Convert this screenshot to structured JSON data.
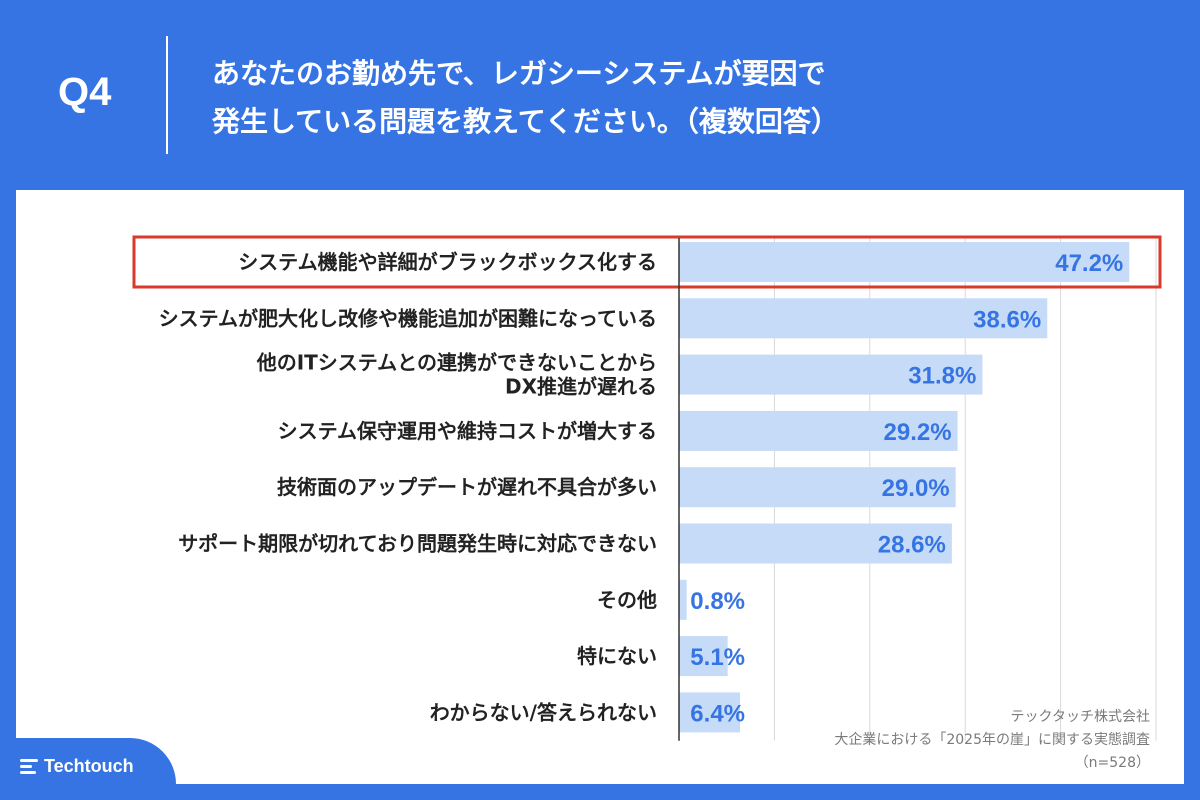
{
  "header": {
    "question": "Q4",
    "title_line1": "あなたのお勤め先で、レガシーシステムが要因で",
    "title_line2": "発生している問題を教えてください。（複数回答）"
  },
  "chart_data": {
    "type": "bar",
    "orientation": "horizontal",
    "categories": [
      [
        "システム機能や詳細がブラックボックス化する"
      ],
      [
        "システムが肥大化し改修や機能追加が困難になっている"
      ],
      [
        "他のITシステムとの連携ができないことから",
        "DX推進が遅れる"
      ],
      [
        "システム保守運用や維持コストが増大する"
      ],
      [
        "技術面のアップデートが遅れ不具合が多い"
      ],
      [
        "サポート期限が切れており問題発生時に対応できない"
      ],
      [
        "その他"
      ],
      [
        "特にない"
      ],
      [
        "わからない/答えられない"
      ]
    ],
    "values": [
      47.2,
      38.6,
      31.8,
      29.2,
      29.0,
      28.6,
      0.8,
      5.1,
      6.4
    ],
    "value_labels": [
      "47.2%",
      "38.6%",
      "31.8%",
      "29.2%",
      "29.0%",
      "28.6%",
      "0.8%",
      "5.1%",
      "6.4%"
    ],
    "xlim": [
      0,
      50
    ],
    "grid": true,
    "highlighted_index": 0,
    "colors": {
      "bar": "#c5dbf8",
      "value_label": "#3574e2",
      "highlight_border": "#d93a2b",
      "grid": "#d9d9d9",
      "axis": "#333333",
      "category_label": "#222222"
    }
  },
  "footer": {
    "credit_company": "テックタッチ株式会社",
    "credit_survey": "大企業における「2025年の崖」に関する実態調査",
    "credit_sample": "（n=528）",
    "brand_name": "Techtouch"
  }
}
